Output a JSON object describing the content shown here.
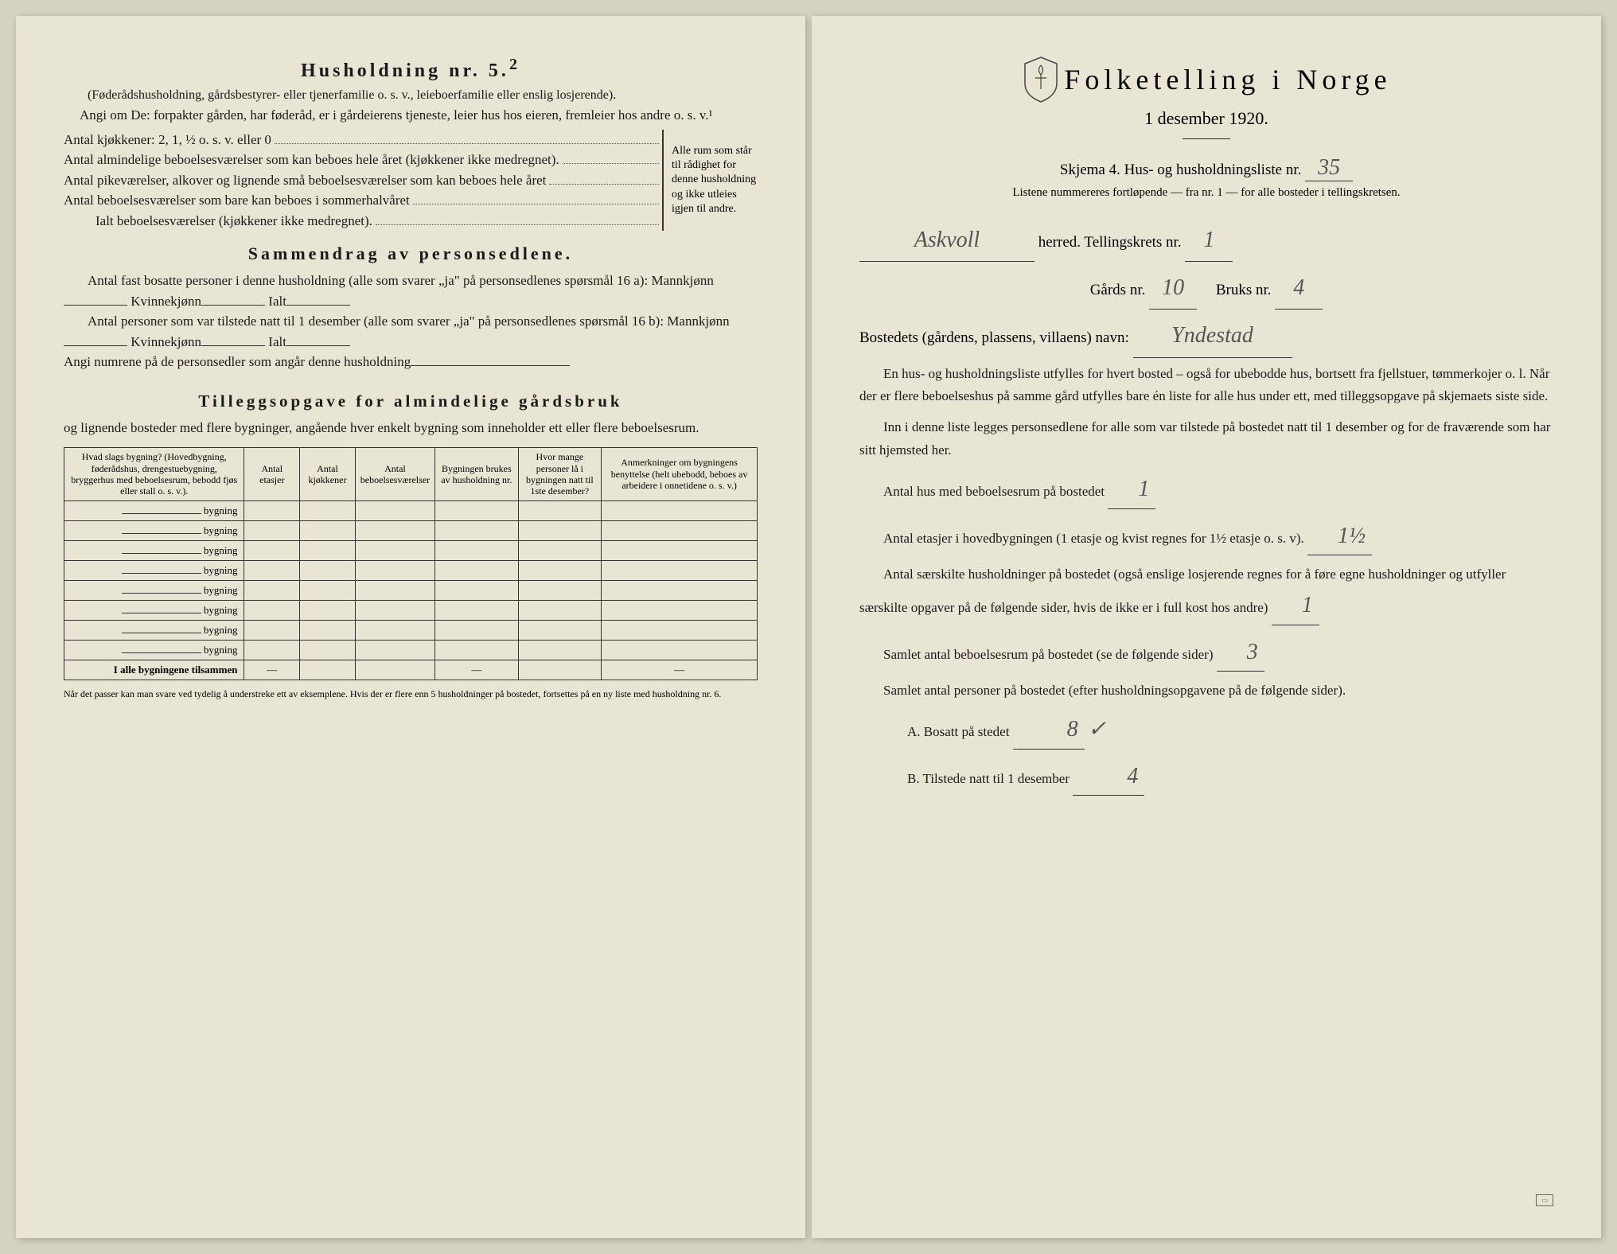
{
  "left": {
    "husholdning_title": "Husholdning nr. 5.",
    "husholdning_sup": "2",
    "husholdning_note": "(Føderådshusholdning, gårdsbestyrer- eller tjenerfamilie o. s. v., leieboerfamilie eller enslig losjerende).",
    "angi_line": "Angi om De: forpakter gården, har føderåd, er i gårdeierens tjeneste, leier hus hos eieren, fremleier hos andre o. s. v.¹",
    "kjokkener": "Antal kjøkkener: 2, 1, ½ o. s. v. eller 0",
    "alm_beboelse": "Antal almindelige beboelsesværelser som kan beboes hele året (kjøkkener ikke medregnet).",
    "pike": "Antal pikeværelser, alkover og lignende små beboelsesværelser som kan beboes hele året",
    "sommer": "Antal beboelsesværelser som bare kan beboes i sommerhalvåret",
    "ialt": "Ialt beboelsesværelser (kjøkkener ikke medregnet).",
    "brace_text": "Alle rum som står til rådighet for denne husholdning og ikke utleies igjen til andre.",
    "sammendrag_title": "Sammendrag av personsedlene.",
    "s1": "Antal fast bosatte personer i denne husholdning (alle som svarer „ja\" på personsedlenes spørsmål 16 a): Mannkjønn",
    "s1_k": "Kvinnekjønn",
    "s1_i": "Ialt",
    "s2": "Antal personer som var tilstede natt til 1 desember (alle som svarer „ja\" på personsedlenes spørsmål 16 b): Mannkjønn",
    "s2_k": "Kvinnekjønn",
    "s2_i": "Ialt",
    "s3": "Angi numrene på de personsedler som angår denne husholdning",
    "tillegg_title": "Tilleggsopgave for almindelige gårdsbruk",
    "tillegg_sub": "og lignende bosteder med flere bygninger, angående hver enkelt bygning som inneholder ett eller flere beboelsesrum.",
    "th1": "Hvad slags bygning?\n(Hovedbygning, føderådshus, drengestuebygning, bryggerhus med beboelsesrum, bebodd fjøs eller stall o. s. v.).",
    "th2": "Antal etasjer",
    "th3": "Antal kjøkkener",
    "th4": "Antal beboelsesværelser",
    "th5": "Bygningen brukes av husholdning nr.",
    "th6": "Hvor mange personer lå i bygningen natt til 1ste desember?",
    "th7": "Anmerkninger om bygningens benyttelse (helt ubebodd, beboes av arbeidere i onnetidene o. s. v.)",
    "row_label": "bygning",
    "total_row": "I alle bygningene tilsammen",
    "footnote": "Når det passer kan man svare ved tydelig å understreke ett av eksemplene.\nHvis der er flere enn 5 husholdninger på bostedet, fortsettes på en ny liste med husholdning nr. 6."
  },
  "right": {
    "main_title": "Folketelling i Norge",
    "date": "1 desember 1920.",
    "skjema": "Skjema 4.  Hus- og husholdningsliste nr.",
    "skjema_nr": "35",
    "listene": "Listene nummereres fortløpende — fra nr. 1 — for alle bosteder i tellingskretsen.",
    "herred_val": "Askvoll",
    "herred_lbl": "herred.  Tellingskrets nr.",
    "krets_nr": "1",
    "gards_lbl": "Gårds nr.",
    "gards_nr": "10",
    "bruks_lbl": "Bruks nr.",
    "bruks_nr": "4",
    "bosted_lbl": "Bostedets (gårdens, plassens, villaens) navn:",
    "bosted_val": "Yndestad",
    "p1": "En hus- og husholdningsliste utfylles for hvert bosted – også for ubebodde hus, bortsett fra fjellstuer, tømmerkojer o. l.  Når der er flere beboelseshus på samme gård utfylles bare én liste for alle hus under ett, med tilleggsopgave på skjemaets siste side.",
    "p2": "Inn i denne liste legges personsedlene for alle som var tilstede på bostedet natt til 1 desember og for de fraværende som har sitt hjemsted her.",
    "q1": "Antal hus med beboelsesrum på bostedet",
    "q1_val": "1",
    "q2a": "Antal etasjer i hovedbygningen (1 etasje og kvist regnes for 1½ etasje o. s. v).",
    "q2_val": "1½",
    "q3": "Antal særskilte husholdninger på bostedet (også enslige losjerende regnes for å føre egne husholdninger og utfyller særskilte opgaver på de følgende sider, hvis de ikke er i full kost hos andre)",
    "q3_val": "1",
    "q4": "Samlet antal beboelsesrum på bostedet (se de følgende sider)",
    "q4_val": "3",
    "q5": "Samlet antal personer på bostedet (efter husholdningsopgavene på de følgende sider).",
    "qA": "A.  Bosatt på stedet",
    "qA_val": "8",
    "qA_check": "✓",
    "qB": "B.  Tilstede natt til 1 desember",
    "qB_val": "4"
  },
  "colors": {
    "paper": "#e8e5d4",
    "ink": "#1a1a1a",
    "pencil": "#555555"
  }
}
